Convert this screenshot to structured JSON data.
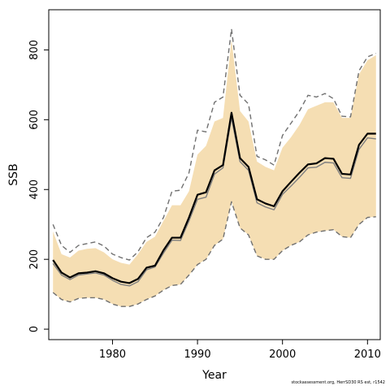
{
  "chart_data": {
    "type": "line",
    "xlabel": "Year",
    "ylabel": "SSB",
    "xlim": [
      1972.5,
      2011.5
    ],
    "ylim": [
      -30,
      915
    ],
    "xticks": [
      1980,
      1990,
      2000,
      2010
    ],
    "yticks": [
      0,
      200,
      400,
      600,
      800
    ],
    "grid": false,
    "legend": "none",
    "colors": {
      "band": "#f5deb3",
      "estimate": "#000000",
      "alt_estimate": "#808080",
      "interval_lines": "#707070",
      "axis": "#000000"
    },
    "x": [
      1973,
      1974,
      1975,
      1976,
      1977,
      1978,
      1979,
      1980,
      1981,
      1982,
      1983,
      1984,
      1985,
      1986,
      1987,
      1988,
      1989,
      1990,
      1991,
      1992,
      1993,
      1994,
      1995,
      1996,
      1997,
      1998,
      1999,
      2000,
      2001,
      2002,
      2003,
      2004,
      2005,
      2006,
      2007,
      2008,
      2009,
      2010,
      2011
    ],
    "band": {
      "upper": [
        280,
        215,
        205,
        225,
        230,
        232,
        220,
        200,
        190,
        185,
        215,
        250,
        265,
        310,
        355,
        355,
        395,
        500,
        525,
        595,
        605,
        830,
        625,
        595,
        480,
        465,
        455,
        520,
        550,
        585,
        630,
        640,
        650,
        650,
        605,
        605,
        730,
        770,
        785
      ],
      "lower": [
        105,
        85,
        78,
        88,
        90,
        90,
        85,
        72,
        65,
        65,
        72,
        85,
        95,
        112,
        125,
        128,
        155,
        185,
        200,
        240,
        258,
        365,
        290,
        270,
        210,
        200,
        200,
        225,
        240,
        250,
        270,
        278,
        282,
        285,
        265,
        262,
        300,
        320,
        322
      ]
    },
    "series": [
      {
        "name": "",
        "style": "solid-bold",
        "values": [
          198,
          162,
          148,
          160,
          162,
          166,
          160,
          146,
          136,
          132,
          144,
          176,
          182,
          226,
          262,
          262,
          320,
          385,
          392,
          455,
          470,
          620,
          490,
          465,
          372,
          360,
          352,
          395,
          422,
          448,
          472,
          475,
          490,
          488,
          445,
          443,
          528,
          560,
          560
        ]
      },
      {
        "name": "",
        "style": "solid-thin",
        "values": [
          188,
          155,
          142,
          155,
          158,
          161,
          155,
          140,
          128,
          124,
          136,
          170,
          178,
          218,
          255,
          254,
          310,
          372,
          378,
          444,
          462,
          605,
          480,
          455,
          362,
          350,
          342,
          386,
          410,
          435,
          462,
          464,
          478,
          476,
          434,
          432,
          515,
          548,
          545
        ]
      },
      {
        "name": "",
        "style": "dashed",
        "values": [
          300,
          240,
          220,
          240,
          245,
          250,
          238,
          215,
          205,
          198,
          222,
          262,
          278,
          320,
          395,
          398,
          448,
          570,
          565,
          650,
          665,
          860,
          670,
          645,
          495,
          485,
          470,
          555,
          590,
          625,
          670,
          665,
          675,
          660,
          610,
          608,
          740,
          780,
          790
        ]
      },
      {
        "name": "",
        "style": "dashed",
        "values": [
          105,
          85,
          78,
          88,
          90,
          90,
          85,
          72,
          65,
          65,
          72,
          85,
          95,
          112,
          125,
          128,
          155,
          185,
          200,
          240,
          258,
          365,
          290,
          270,
          210,
          200,
          200,
          225,
          240,
          250,
          270,
          278,
          282,
          285,
          265,
          262,
          300,
          320,
          322
        ]
      }
    ],
    "footnote": "stockassessment.org, HerrSD30 RS est, r1542"
  }
}
